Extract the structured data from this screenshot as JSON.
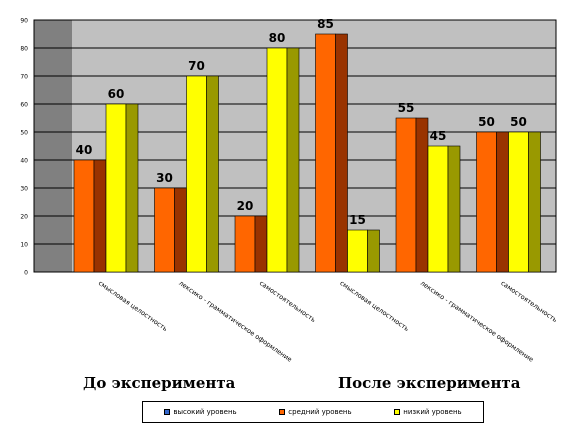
{
  "chart_data": {
    "type": "bar",
    "categories": [
      "смысловая целостность",
      "лексико - грамматическое оформление",
      "самостоятельность",
      "смысловая целостность",
      "лексико - грамматическое оформление",
      "самостоятельность"
    ],
    "series": [
      {
        "name": "средний уровень",
        "values": [
          40,
          30,
          20,
          85,
          55,
          50
        ],
        "color": "#FF6600",
        "side_color": "#993300"
      },
      {
        "name": "низкий уровень",
        "values": [
          60,
          70,
          80,
          15,
          45,
          50
        ],
        "color": "#FFFF00",
        "side_color": "#999900"
      }
    ],
    "ylim": [
      0,
      90
    ],
    "yticks": [
      0,
      10,
      20,
      30,
      40,
      50,
      60,
      70,
      80,
      90
    ],
    "grid": true,
    "plot_colors": {
      "wall": "#C0C0C0",
      "floor": "#808080",
      "grid": "#000000"
    }
  },
  "group_labels": [
    "До эксперимента",
    "После эксперимента"
  ],
  "legend": [
    {
      "label": "высокий уровень",
      "color": "#3366CC"
    },
    {
      "label": "средний уровень",
      "color": "#FF6600"
    },
    {
      "label": "низкий уровень",
      "color": "#FFFF00"
    }
  ]
}
